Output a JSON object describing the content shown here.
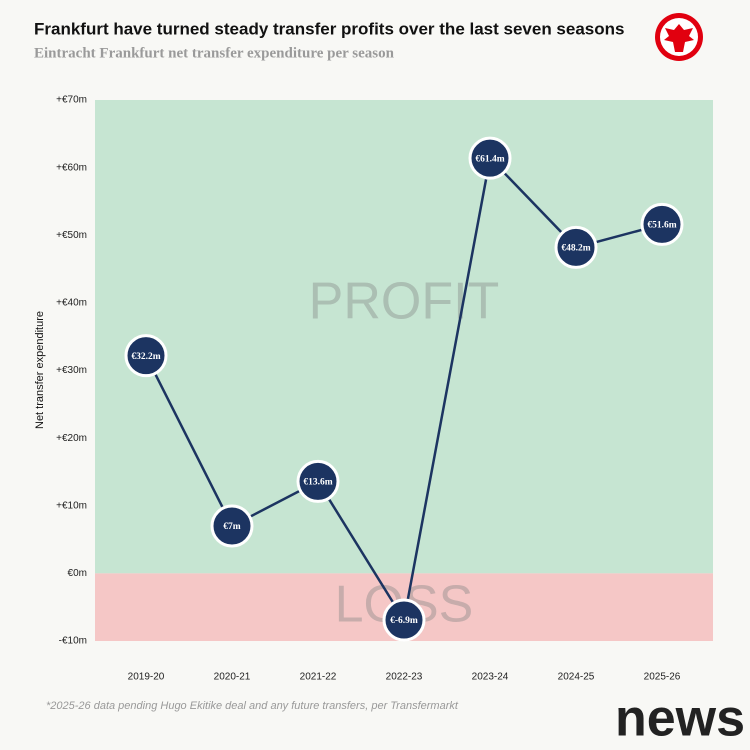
{
  "chart_data": {
    "type": "line",
    "title": "Frankfurt have turned steady transfer profits over the last seven seasons",
    "subtitle": "Eintracht Frankfurt net transfer expenditure per season",
    "y_label": "Net transfer expenditure",
    "categories": [
      "2019-20",
      "2020-21",
      "2021-22",
      "2022-23",
      "2023-24",
      "2024-25",
      "2025-26"
    ],
    "values": [
      32.2,
      7,
      13.6,
      -6.9,
      61.4,
      48.2,
      51.6
    ],
    "value_labels": [
      "€32.2m",
      "€7m",
      "€13.6m",
      "€-6.9m",
      "€61.4m",
      "€48.2m",
      "€51.6m"
    ],
    "color": "#1c3461",
    "ylim": [
      -10,
      70
    ],
    "yticks": [
      {
        "value": -10,
        "label": "-€10m"
      },
      {
        "value": 0,
        "label": "€0m"
      },
      {
        "value": 10,
        "label": "+€10m"
      },
      {
        "value": 20,
        "label": "+€20m"
      },
      {
        "value": 30,
        "label": "+€30m"
      },
      {
        "value": 40,
        "label": "+€40m"
      },
      {
        "value": 50,
        "label": "+€50m"
      },
      {
        "value": 60,
        "label": "+€60m"
      },
      {
        "value": 70,
        "label": "+€70m"
      }
    ],
    "zones": [
      {
        "label": "PROFIT",
        "color": "#c6e5d2"
      },
      {
        "label": "LOSS",
        "color": "#f5c7c6"
      }
    ],
    "footnote": "*2025-26 data pending Hugo Ekitike deal and any future transfers, per Transfermarkt",
    "watermark": "news"
  }
}
